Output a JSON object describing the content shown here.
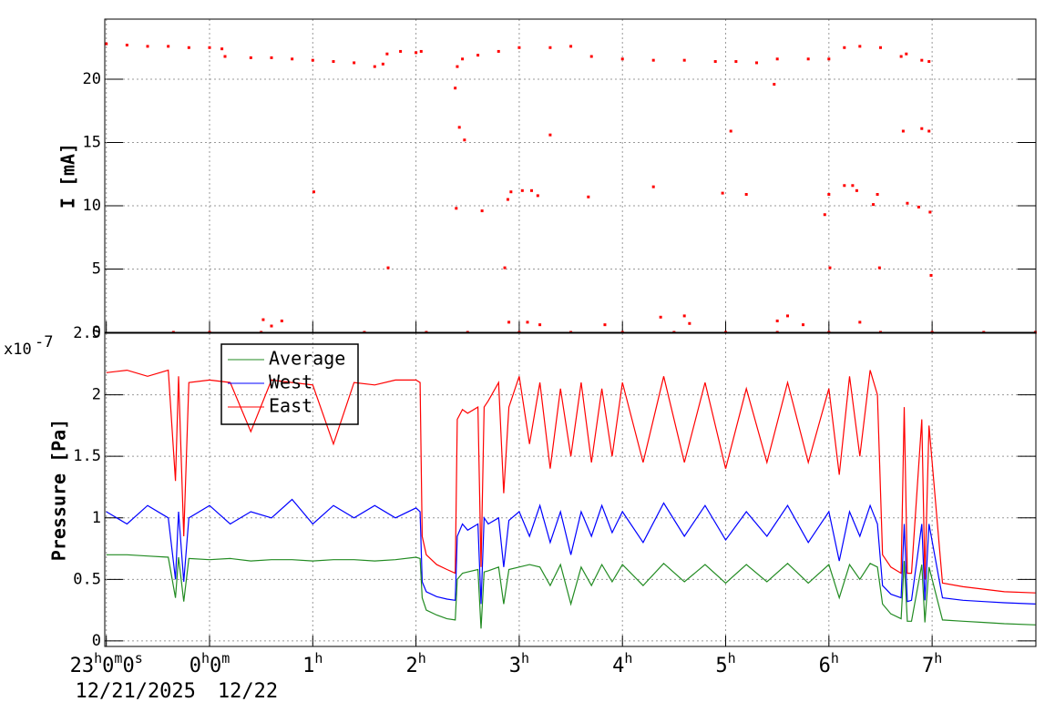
{
  "chart_data": [
    {
      "type": "scatter",
      "ylabel": "I [mA]",
      "color": "#ff0000",
      "grid": true,
      "xlim": [
        -1.015,
        8.005
      ],
      "ylim": [
        0,
        24.75
      ],
      "yticks": [
        0,
        5,
        10,
        15,
        20
      ],
      "xticks": [
        {
          "value": -1,
          "label": "23h0m0s"
        },
        {
          "value": 0,
          "label": "0h0m"
        },
        {
          "value": 1,
          "label": "1h"
        },
        {
          "value": 2,
          "label": "2h"
        },
        {
          "value": 3,
          "label": "3h"
        },
        {
          "value": 4,
          "label": "4h"
        },
        {
          "value": 5,
          "label": "5h"
        },
        {
          "value": 6,
          "label": "6h"
        },
        {
          "value": 7,
          "label": "7h"
        }
      ],
      "x": [
        -1,
        -0.8,
        -0.6,
        -0.4,
        -0.2,
        0,
        0.12,
        0.15,
        0.4,
        0.6,
        0.8,
        1.0,
        1.2,
        1.4,
        1.6,
        1.68,
        1.72,
        1.85,
        2.0,
        2.05,
        2.4,
        2.45,
        2.6,
        2.8,
        3.0,
        3.3,
        3.5,
        3.7,
        4.0,
        4.3,
        4.6,
        4.9,
        5.1,
        5.3,
        5.5,
        5.8,
        6.0,
        6.15,
        6.3,
        6.5,
        6.7,
        6.75,
        6.9,
        6.97,
        1.01,
        1.73,
        2.38,
        2.42,
        2.47,
        2.39,
        2.64,
        2.86,
        2.89,
        2.92,
        3.03,
        3.12,
        3.18,
        3.3,
        3.67,
        4.3,
        4.97,
        5.05,
        5.2,
        5.47,
        5.96,
        6.0,
        6.01,
        6.15,
        6.23,
        6.27,
        6.43,
        6.47,
        6.49,
        6.72,
        6.76,
        6.87,
        6.9,
        6.97,
        6.98,
        6.99,
        0.52,
        0.6,
        0.7,
        2.9,
        3.08,
        3.2,
        3.83,
        4.37,
        4.6,
        4.65,
        5.5,
        5.6,
        5.75,
        6.3,
        -0.35,
        0.0,
        0.5,
        1.5,
        2.1,
        2.5,
        3.0,
        3.5,
        4.0,
        4.5,
        5.0,
        5.5,
        6.0,
        6.5,
        7.0,
        7.5,
        8.0
      ],
      "values": [
        22.8,
        22.7,
        22.6,
        22.6,
        22.5,
        22.5,
        22.4,
        21.8,
        21.7,
        21.7,
        21.6,
        21.5,
        21.4,
        21.3,
        21.0,
        21.2,
        22.0,
        22.2,
        22.1,
        22.2,
        21.0,
        21.6,
        21.9,
        22.2,
        22.5,
        22.5,
        22.6,
        21.8,
        21.6,
        21.5,
        21.5,
        21.4,
        21.4,
        21.3,
        21.6,
        21.6,
        21.6,
        22.5,
        22.6,
        22.5,
        21.8,
        22.0,
        21.5,
        21.4,
        11.1,
        5.1,
        19.3,
        16.2,
        15.2,
        9.8,
        9.6,
        5.1,
        10.5,
        11.1,
        11.2,
        11.2,
        10.8,
        15.6,
        10.7,
        11.5,
        11.0,
        15.9,
        10.9,
        19.6,
        9.3,
        10.9,
        5.1,
        11.6,
        11.6,
        11.2,
        10.1,
        10.9,
        5.1,
        15.9,
        10.2,
        9.9,
        16.1,
        15.9,
        9.5,
        4.5,
        1.0,
        0.5,
        0.9,
        0.8,
        0.8,
        0.6,
        0.6,
        1.2,
        1.3,
        0.7,
        0.9,
        1.3,
        0.6,
        0.8,
        0,
        0,
        0,
        0,
        0,
        0,
        0,
        0,
        0,
        0,
        0,
        0,
        0,
        0,
        0,
        0,
        0
      ]
    },
    {
      "type": "line",
      "ylabel": "Pressure [Pa]",
      "ylabel_exponent": {
        "base": "x10",
        "power": "-7"
      },
      "grid": true,
      "legend": "top-left",
      "xlim": [
        -1.015,
        8.005
      ],
      "ylim": [
        -0.045,
        2.5
      ],
      "yticks": [
        0,
        0.5,
        1,
        1.5,
        2,
        2.5
      ],
      "xticks": [
        {
          "value": -1,
          "label": "23h0m0s",
          "date": "12/21/2025"
        },
        {
          "value": 0,
          "label": "0h0m",
          "date": "12/22"
        },
        {
          "value": 1,
          "label": "1h"
        },
        {
          "value": 2,
          "label": "2h"
        },
        {
          "value": 3,
          "label": "3h"
        },
        {
          "value": 4,
          "label": "4h"
        },
        {
          "value": 5,
          "label": "5h"
        },
        {
          "value": 6,
          "label": "6h"
        },
        {
          "value": 7,
          "label": "7h"
        }
      ],
      "x": [
        -1,
        -0.8,
        -0.6,
        -0.4,
        -0.33,
        -0.3,
        -0.25,
        -0.2,
        0,
        0.2,
        0.4,
        0.6,
        0.8,
        1,
        1.2,
        1.4,
        1.6,
        1.8,
        2,
        2.04,
        2.06,
        2.1,
        2.2,
        2.3,
        2.38,
        2.4,
        2.45,
        2.5,
        2.6,
        2.63,
        2.66,
        2.7,
        2.8,
        2.85,
        2.9,
        3,
        3.1,
        3.2,
        3.3,
        3.4,
        3.5,
        3.6,
        3.7,
        3.8,
        3.9,
        4,
        4.2,
        4.4,
        4.6,
        4.8,
        5,
        5.2,
        5.4,
        5.6,
        5.8,
        6,
        6.1,
        6.2,
        6.3,
        6.4,
        6.47,
        6.52,
        6.6,
        6.7,
        6.73,
        6.76,
        6.8,
        6.9,
        6.93,
        6.97,
        7.1,
        7.3,
        7.5,
        7.7,
        8.0
      ],
      "series": [
        {
          "name": "Average",
          "color": "#228b22",
          "values": [
            0.7,
            0.7,
            0.69,
            0.68,
            0.35,
            0.68,
            0.32,
            0.67,
            0.66,
            0.67,
            0.65,
            0.66,
            0.66,
            0.65,
            0.66,
            0.66,
            0.65,
            0.66,
            0.68,
            0.67,
            0.35,
            0.25,
            0.21,
            0.18,
            0.17,
            0.5,
            0.55,
            0.56,
            0.58,
            0.1,
            0.56,
            0.57,
            0.6,
            0.3,
            0.58,
            0.6,
            0.62,
            0.6,
            0.45,
            0.62,
            0.3,
            0.6,
            0.45,
            0.62,
            0.48,
            0.62,
            0.45,
            0.63,
            0.48,
            0.62,
            0.47,
            0.62,
            0.48,
            0.63,
            0.47,
            0.62,
            0.35,
            0.62,
            0.5,
            0.63,
            0.6,
            0.3,
            0.22,
            0.18,
            0.65,
            0.16,
            0.16,
            0.62,
            0.15,
            0.6,
            0.17,
            0.16,
            0.15,
            0.14,
            0.13
          ]
        },
        {
          "name": "West",
          "color": "#0000ff",
          "values": [
            1.05,
            0.95,
            1.1,
            1.0,
            0.5,
            1.05,
            0.48,
            1.0,
            1.1,
            0.95,
            1.05,
            1.0,
            1.15,
            0.95,
            1.1,
            1.0,
            1.1,
            1.0,
            1.08,
            1.05,
            0.48,
            0.4,
            0.36,
            0.34,
            0.33,
            0.85,
            0.95,
            0.9,
            0.95,
            0.3,
            1.0,
            0.95,
            1.0,
            0.6,
            0.98,
            1.05,
            0.85,
            1.1,
            0.8,
            1.05,
            0.7,
            1.05,
            0.85,
            1.1,
            0.88,
            1.05,
            0.8,
            1.12,
            0.85,
            1.1,
            0.82,
            1.05,
            0.85,
            1.1,
            0.8,
            1.05,
            0.65,
            1.05,
            0.85,
            1.1,
            0.95,
            0.45,
            0.38,
            0.35,
            0.95,
            0.32,
            0.33,
            0.95,
            0.33,
            0.95,
            0.35,
            0.33,
            0.32,
            0.31,
            0.3
          ]
        },
        {
          "name": "East",
          "color": "#ff0000",
          "values": [
            2.18,
            2.2,
            2.15,
            2.2,
            1.3,
            2.15,
            0.85,
            2.1,
            2.12,
            2.1,
            1.7,
            2.12,
            2.1,
            2.08,
            1.6,
            2.1,
            2.08,
            2.12,
            2.12,
            2.1,
            0.85,
            0.7,
            0.62,
            0.58,
            0.55,
            1.8,
            1.88,
            1.85,
            1.9,
            0.6,
            1.9,
            1.95,
            2.1,
            1.2,
            1.9,
            2.15,
            1.6,
            2.1,
            1.4,
            2.05,
            1.5,
            2.1,
            1.45,
            2.05,
            1.5,
            2.1,
            1.45,
            2.15,
            1.45,
            2.1,
            1.4,
            2.05,
            1.45,
            2.1,
            1.45,
            2.05,
            1.35,
            2.15,
            1.5,
            2.2,
            2.0,
            0.7,
            0.6,
            0.55,
            1.9,
            0.55,
            0.55,
            1.8,
            0.5,
            1.75,
            0.47,
            0.44,
            0.42,
            0.4,
            0.39
          ]
        }
      ]
    }
  ]
}
